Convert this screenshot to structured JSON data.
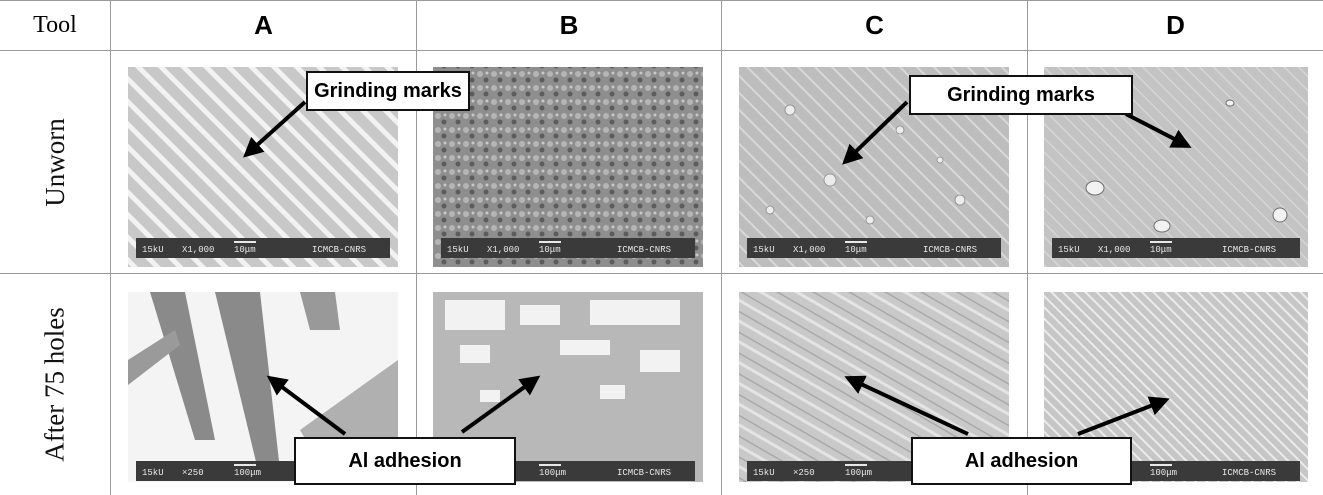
{
  "header": {
    "tool": "Tool",
    "cols": [
      "A",
      "B",
      "C",
      "D"
    ]
  },
  "rows": [
    "Unworn",
    "After 75 holes"
  ],
  "sem_scalebars": {
    "unworn": {
      "kv": "15kU",
      "mag": "X1,000",
      "scale": "10μm",
      "lab": "ICMCB-CNRS"
    },
    "worn": {
      "kv": "15kU",
      "mag": "×250",
      "scale": "100μm",
      "lab": "ICMCB-CNRS"
    }
  },
  "callouts": {
    "grinding_left": "Grinding marks",
    "grinding_right": "Grinding marks",
    "adhesion_left": "Al adhesion",
    "adhesion_right": "Al adhesion"
  }
}
